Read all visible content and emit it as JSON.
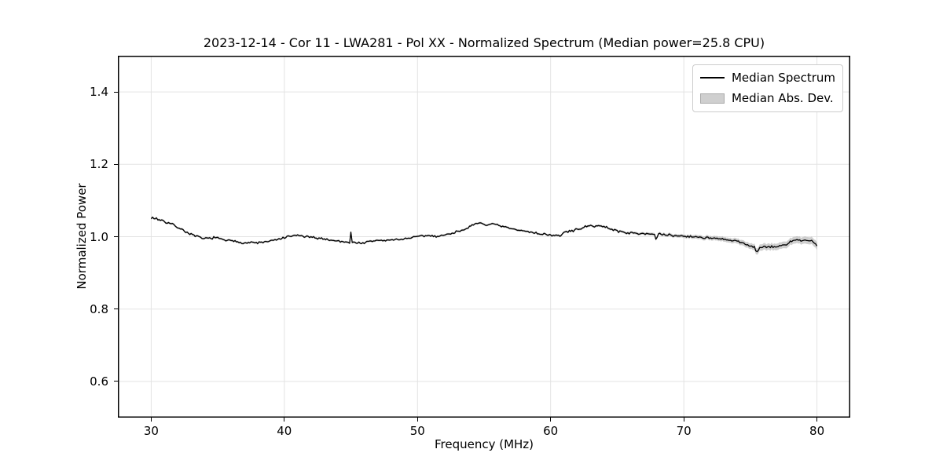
{
  "chart_data": {
    "type": "line",
    "title": "2023-12-14 - Cor 11 - LWA281 - Pol XX - Normalized Spectrum (Median power=25.8 CPU)",
    "xlabel": "Frequency (MHz)",
    "ylabel": "Normalized Power",
    "xlim": [
      27.5,
      82.5
    ],
    "ylim": [
      0.5,
      1.5
    ],
    "x_ticks": [
      30,
      40,
      50,
      60,
      70,
      80
    ],
    "y_ticks": [
      0.6,
      0.8,
      1.0,
      1.2,
      1.4
    ],
    "grid": true,
    "legend_position": "upper right",
    "colors": {
      "line": "#000000",
      "band": "#8c8c8c",
      "band_alpha": 0.42,
      "grid": "#e3e3e3",
      "spine": "#000000",
      "background": "#ffffff"
    },
    "noise": {
      "seed": 7,
      "amplitude": 0.0038,
      "step_mhz": 0.1
    },
    "series": [
      {
        "name": "Median Spectrum",
        "color": "#000000",
        "points": [
          [
            30.0,
            1.053
          ],
          [
            30.2,
            1.05
          ],
          [
            30.4,
            1.051
          ],
          [
            30.6,
            1.046
          ],
          [
            30.8,
            1.047
          ],
          [
            31.0,
            1.041
          ],
          [
            31.3,
            1.038
          ],
          [
            31.6,
            1.034
          ],
          [
            32.0,
            1.026
          ],
          [
            32.4,
            1.018
          ],
          [
            32.8,
            1.01
          ],
          [
            33.2,
            1.003
          ],
          [
            33.6,
            0.998
          ],
          [
            34.0,
            0.994
          ],
          [
            34.4,
            0.996
          ],
          [
            34.8,
            0.998
          ],
          [
            35.2,
            0.993
          ],
          [
            35.6,
            0.99
          ],
          [
            36.0,
            0.988
          ],
          [
            36.5,
            0.986
          ],
          [
            37.0,
            0.983
          ],
          [
            37.5,
            0.984
          ],
          [
            38.0,
            0.983
          ],
          [
            38.5,
            0.985
          ],
          [
            39.0,
            0.988
          ],
          [
            39.5,
            0.992
          ],
          [
            40.0,
            0.997
          ],
          [
            40.5,
            1.001
          ],
          [
            41.0,
            1.004
          ],
          [
            41.4,
            1.001
          ],
          [
            41.8,
            0.999
          ],
          [
            42.2,
            0.997
          ],
          [
            42.6,
            0.996
          ],
          [
            43.0,
            0.994
          ],
          [
            43.4,
            0.991
          ],
          [
            43.8,
            0.989
          ],
          [
            44.2,
            0.987
          ],
          [
            44.6,
            0.986
          ],
          [
            44.9,
            0.984
          ],
          [
            45.0,
            1.013
          ],
          [
            45.1,
            0.984
          ],
          [
            45.5,
            0.983
          ],
          [
            46.0,
            0.983
          ],
          [
            46.4,
            0.986
          ],
          [
            46.8,
            0.989
          ],
          [
            47.2,
            0.99
          ],
          [
            47.6,
            0.989
          ],
          [
            48.0,
            0.991
          ],
          [
            48.5,
            0.992
          ],
          [
            49.0,
            0.994
          ],
          [
            49.5,
            0.997
          ],
          [
            50.0,
            1.0
          ],
          [
            50.5,
            1.002
          ],
          [
            51.0,
            1.003
          ],
          [
            51.5,
            1.001
          ],
          [
            52.0,
            1.004
          ],
          [
            52.5,
            1.009
          ],
          [
            53.0,
            1.014
          ],
          [
            53.5,
            1.021
          ],
          [
            54.0,
            1.028
          ],
          [
            54.5,
            1.036
          ],
          [
            54.8,
            1.039
          ],
          [
            55.1,
            1.031
          ],
          [
            55.4,
            1.036
          ],
          [
            55.8,
            1.033
          ],
          [
            56.2,
            1.029
          ],
          [
            56.6,
            1.026
          ],
          [
            57.0,
            1.022
          ],
          [
            57.5,
            1.018
          ],
          [
            58.0,
            1.016
          ],
          [
            58.5,
            1.013
          ],
          [
            59.0,
            1.009
          ],
          [
            59.5,
            1.007
          ],
          [
            60.0,
            1.005
          ],
          [
            60.4,
            1.002
          ],
          [
            60.8,
            1.004
          ],
          [
            61.0,
            1.012
          ],
          [
            61.5,
            1.015
          ],
          [
            62.0,
            1.02
          ],
          [
            62.5,
            1.026
          ],
          [
            63.0,
            1.029
          ],
          [
            63.5,
            1.031
          ],
          [
            64.0,
            1.027
          ],
          [
            64.5,
            1.022
          ],
          [
            65.0,
            1.016
          ],
          [
            65.5,
            1.012
          ],
          [
            66.0,
            1.01
          ],
          [
            66.5,
            1.009
          ],
          [
            67.0,
            1.01
          ],
          [
            67.4,
            1.008
          ],
          [
            67.8,
            1.006
          ],
          [
            67.9,
            0.99
          ],
          [
            68.1,
            1.007
          ],
          [
            68.5,
            1.005
          ],
          [
            69.0,
            1.004
          ],
          [
            69.5,
            1.002
          ],
          [
            70.0,
            1.002
          ],
          [
            70.5,
            1.0
          ],
          [
            71.0,
            0.999
          ],
          [
            71.5,
            0.998
          ],
          [
            72.0,
            0.996
          ],
          [
            72.5,
            0.994
          ],
          [
            73.0,
            0.992
          ],
          [
            73.5,
            0.99
          ],
          [
            74.0,
            0.987
          ],
          [
            74.5,
            0.981
          ],
          [
            75.0,
            0.975
          ],
          [
            75.3,
            0.972
          ],
          [
            75.45,
            0.957
          ],
          [
            75.7,
            0.968
          ],
          [
            76.0,
            0.973
          ],
          [
            76.3,
            0.969
          ],
          [
            76.6,
            0.973
          ],
          [
            77.0,
            0.972
          ],
          [
            77.4,
            0.976
          ],
          [
            77.8,
            0.979
          ],
          [
            78.0,
            0.988
          ],
          [
            78.3,
            0.99
          ],
          [
            78.6,
            0.992
          ],
          [
            78.9,
            0.987
          ],
          [
            79.2,
            0.99
          ],
          [
            79.5,
            0.988
          ],
          [
            79.8,
            0.984
          ],
          [
            80.0,
            0.974
          ]
        ]
      },
      {
        "name": "Median Abs. Dev.",
        "color": "#8c8c8c",
        "mad": [
          [
            30,
            0.003
          ],
          [
            40,
            0.0028
          ],
          [
            50,
            0.0028
          ],
          [
            60,
            0.003
          ],
          [
            64,
            0.0032
          ],
          [
            66,
            0.0035
          ],
          [
            68,
            0.004
          ],
          [
            70,
            0.0048
          ],
          [
            71,
            0.0055
          ],
          [
            72,
            0.006
          ],
          [
            73,
            0.0065
          ],
          [
            74,
            0.007
          ],
          [
            75,
            0.008
          ],
          [
            76,
            0.009
          ],
          [
            77,
            0.009
          ],
          [
            78,
            0.0095
          ],
          [
            79,
            0.0095
          ],
          [
            80,
            0.0105
          ]
        ]
      }
    ]
  }
}
